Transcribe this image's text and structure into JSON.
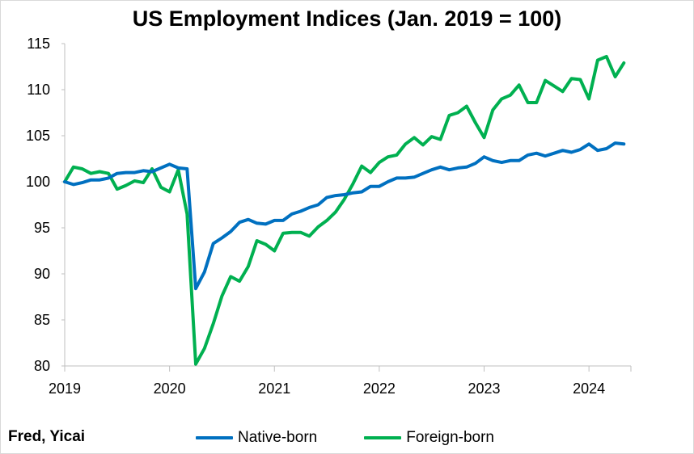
{
  "chart_data": {
    "type": "line",
    "title": "US Employment Indices (Jan. 2019 = 100)",
    "xlabel": "",
    "ylabel": "",
    "ylim": [
      80,
      115
    ],
    "yticks": [
      80,
      85,
      90,
      95,
      100,
      105,
      110,
      115
    ],
    "xlim": [
      2019.0,
      2024.4
    ],
    "xticks": [
      "2019",
      "2020",
      "2021",
      "2022",
      "2023",
      "2024"
    ],
    "grid": false,
    "legend_position": "bottom",
    "x": [
      2019.0,
      2019.083,
      2019.167,
      2019.25,
      2019.333,
      2019.417,
      2019.5,
      2019.583,
      2019.667,
      2019.75,
      2019.833,
      2019.917,
      2020.0,
      2020.083,
      2020.167,
      2020.25,
      2020.333,
      2020.417,
      2020.5,
      2020.583,
      2020.667,
      2020.75,
      2020.833,
      2020.917,
      2021.0,
      2021.083,
      2021.167,
      2021.25,
      2021.333,
      2021.417,
      2021.5,
      2021.583,
      2021.667,
      2021.75,
      2021.833,
      2021.917,
      2022.0,
      2022.083,
      2022.167,
      2022.25,
      2022.333,
      2022.417,
      2022.5,
      2022.583,
      2022.667,
      2022.75,
      2022.833,
      2022.917,
      2023.0,
      2023.083,
      2023.167,
      2023.25,
      2023.333,
      2023.417,
      2023.5,
      2023.583,
      2023.667,
      2023.75,
      2023.833,
      2023.917,
      2024.0,
      2024.083,
      2024.167,
      2024.25,
      2024.333
    ],
    "series": [
      {
        "name": "Native-born",
        "color": "#0070c0",
        "values": [
          100.0,
          99.7,
          99.9,
          100.2,
          100.2,
          100.4,
          100.9,
          101.0,
          101.0,
          101.2,
          101.1,
          101.5,
          101.9,
          101.5,
          101.4,
          88.4,
          90.2,
          93.3,
          93.9,
          94.6,
          95.6,
          95.9,
          95.5,
          95.4,
          95.8,
          95.8,
          96.5,
          96.8,
          97.2,
          97.5,
          98.3,
          98.5,
          98.6,
          98.8,
          98.9,
          99.5,
          99.5,
          100.0,
          100.4,
          100.4,
          100.5,
          100.9,
          101.3,
          101.6,
          101.3,
          101.5,
          101.6,
          102.0,
          102.7,
          102.3,
          102.1,
          102.3,
          102.3,
          102.9,
          103.1,
          102.8,
          103.1,
          103.4,
          103.2,
          103.5,
          104.1,
          103.4,
          103.6,
          104.2,
          104.1
        ]
      },
      {
        "name": "Foreign-born",
        "color": "#00b050",
        "values": [
          100.0,
          101.6,
          101.4,
          100.9,
          101.1,
          100.9,
          99.2,
          99.6,
          100.1,
          99.9,
          101.4,
          99.4,
          98.9,
          101.3,
          96.5,
          80.2,
          81.9,
          84.6,
          87.6,
          89.7,
          89.2,
          90.8,
          93.6,
          93.2,
          92.5,
          94.4,
          94.5,
          94.5,
          94.1,
          95.1,
          95.8,
          96.7,
          98.1,
          99.8,
          101.7,
          101.0,
          102.1,
          102.7,
          102.9,
          104.1,
          104.8,
          104.0,
          104.9,
          104.6,
          107.2,
          107.5,
          108.2,
          106.4,
          104.8,
          107.8,
          109.0,
          109.4,
          110.5,
          108.6,
          108.6,
          111.0,
          110.4,
          109.8,
          111.2,
          111.1,
          109.0,
          113.2,
          113.6,
          111.4,
          112.9
        ]
      }
    ]
  },
  "source_note": "Fred, Yicai"
}
